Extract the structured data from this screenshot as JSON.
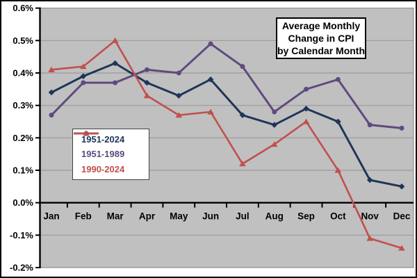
{
  "chart_data": {
    "type": "line",
    "title": "Average Monthly Change in CPI by Calendar Month",
    "title_lines": [
      "Average Monthly",
      "Change in CPI",
      "by Calendar Month"
    ],
    "categories": [
      "Jan",
      "Feb",
      "Mar",
      "Apr",
      "May",
      "Jun",
      "Jul",
      "Aug",
      "Sep",
      "Oct",
      "Nov",
      "Dec"
    ],
    "y_tick_labels": [
      "0.6%",
      "0.5%",
      "0.4%",
      "0.3%",
      "0.2%",
      "0.1%",
      "0.0%",
      "-0.1%",
      "-0.2%"
    ],
    "y_tick_values": [
      0.6,
      0.5,
      0.4,
      0.3,
      0.2,
      0.1,
      0.0,
      -0.1,
      -0.2
    ],
    "ylim": [
      -0.2,
      0.6
    ],
    "y_unit": "percent",
    "grid": true,
    "legend_position": "inside-upper-left",
    "series": [
      {
        "name": "1951-2024",
        "color": "#1F3558",
        "marker": "diamond",
        "values": [
          0.34,
          0.39,
          0.43,
          0.37,
          0.33,
          0.38,
          0.27,
          0.24,
          0.29,
          0.25,
          0.07,
          0.05
        ]
      },
      {
        "name": "1951-1989",
        "color": "#5F4A7E",
        "marker": "circle",
        "values": [
          0.27,
          0.37,
          0.37,
          0.41,
          0.4,
          0.49,
          0.42,
          0.28,
          0.35,
          0.38,
          0.24,
          0.23
        ]
      },
      {
        "name": "1990-2024",
        "color": "#C0504D",
        "marker": "triangle",
        "values": [
          0.41,
          0.42,
          0.5,
          0.33,
          0.27,
          0.28,
          0.12,
          0.18,
          0.25,
          0.1,
          -0.11,
          -0.14
        ]
      }
    ],
    "colors": {
      "plot_background": "#C0C0C0",
      "gridline": "#999999",
      "plot_border": "#808080",
      "axis": "#000000",
      "frame_border": "#000000",
      "chart_background": "#FFFFFF"
    }
  }
}
